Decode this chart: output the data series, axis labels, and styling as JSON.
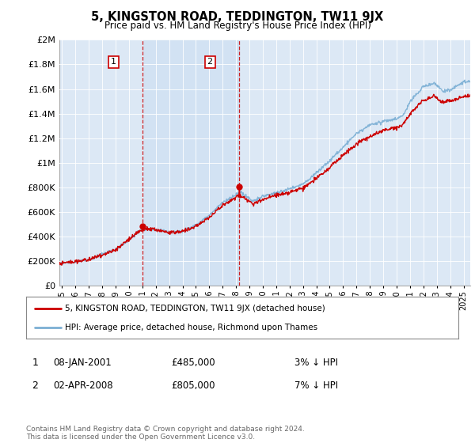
{
  "title": "5, KINGSTON ROAD, TEDDINGTON, TW11 9JX",
  "subtitle": "Price paid vs. HM Land Registry's House Price Index (HPI)",
  "hpi_color": "#7bafd4",
  "hpi_fill_color": "#c8d8ee",
  "price_color": "#cc0000",
  "sale1_x": 2001.04,
  "sale1_y": 485000,
  "sale2_x": 2008.25,
  "sale2_y": 805000,
  "vline1_x": 2001.04,
  "vline2_x": 2008.25,
  "ylim": [
    0,
    2000000
  ],
  "xlim": [
    1994.8,
    2025.5
  ],
  "yticks": [
    0,
    200000,
    400000,
    600000,
    800000,
    1000000,
    1200000,
    1400000,
    1600000,
    1800000,
    2000000
  ],
  "xticks": [
    1995,
    1996,
    1997,
    1998,
    1999,
    2000,
    2001,
    2002,
    2003,
    2004,
    2005,
    2006,
    2007,
    2008,
    2009,
    2010,
    2011,
    2012,
    2013,
    2014,
    2015,
    2016,
    2017,
    2018,
    2019,
    2020,
    2021,
    2022,
    2023,
    2024,
    2025
  ],
  "legend_line1": "5, KINGSTON ROAD, TEDDINGTON, TW11 9JX (detached house)",
  "legend_line2": "HPI: Average price, detached house, Richmond upon Thames",
  "annot1_label": "1",
  "annot1_date": "08-JAN-2001",
  "annot1_price": "£485,000",
  "annot1_hpi": "3% ↓ HPI",
  "annot2_label": "2",
  "annot2_date": "02-APR-2008",
  "annot2_price": "£805,000",
  "annot2_hpi": "7% ↓ HPI",
  "footer": "Contains HM Land Registry data © Crown copyright and database right 2024.\nThis data is licensed under the Open Government Licence v3.0.",
  "bg_color": "#dce8f5",
  "plot_bg": "#ffffff",
  "knots_t": [
    1994.8,
    1995.5,
    1997,
    1999,
    2001,
    2001.5,
    2003,
    2004,
    2005,
    2006,
    2007,
    2007.8,
    2008.3,
    2009.3,
    2010,
    2011,
    2012,
    2013,
    2014,
    2015,
    2016,
    2017,
    2018,
    2019,
    2020,
    2020.5,
    2021,
    2022,
    2022.8,
    2023.5,
    2024,
    2025,
    2025.5
  ],
  "knots_hpi": [
    180000,
    185000,
    215000,
    295000,
    460000,
    460000,
    440000,
    450000,
    500000,
    580000,
    680000,
    730000,
    760000,
    690000,
    730000,
    760000,
    790000,
    830000,
    920000,
    1020000,
    1130000,
    1240000,
    1310000,
    1340000,
    1360000,
    1390000,
    1500000,
    1620000,
    1650000,
    1580000,
    1590000,
    1660000,
    1660000
  ],
  "knots_price": [
    180000,
    185000,
    210000,
    285000,
    455000,
    455000,
    430000,
    435000,
    480000,
    555000,
    650000,
    710000,
    740000,
    660000,
    700000,
    730000,
    755000,
    790000,
    875000,
    960000,
    1060000,
    1150000,
    1210000,
    1260000,
    1280000,
    1310000,
    1400000,
    1510000,
    1540000,
    1490000,
    1500000,
    1540000,
    1540000
  ]
}
